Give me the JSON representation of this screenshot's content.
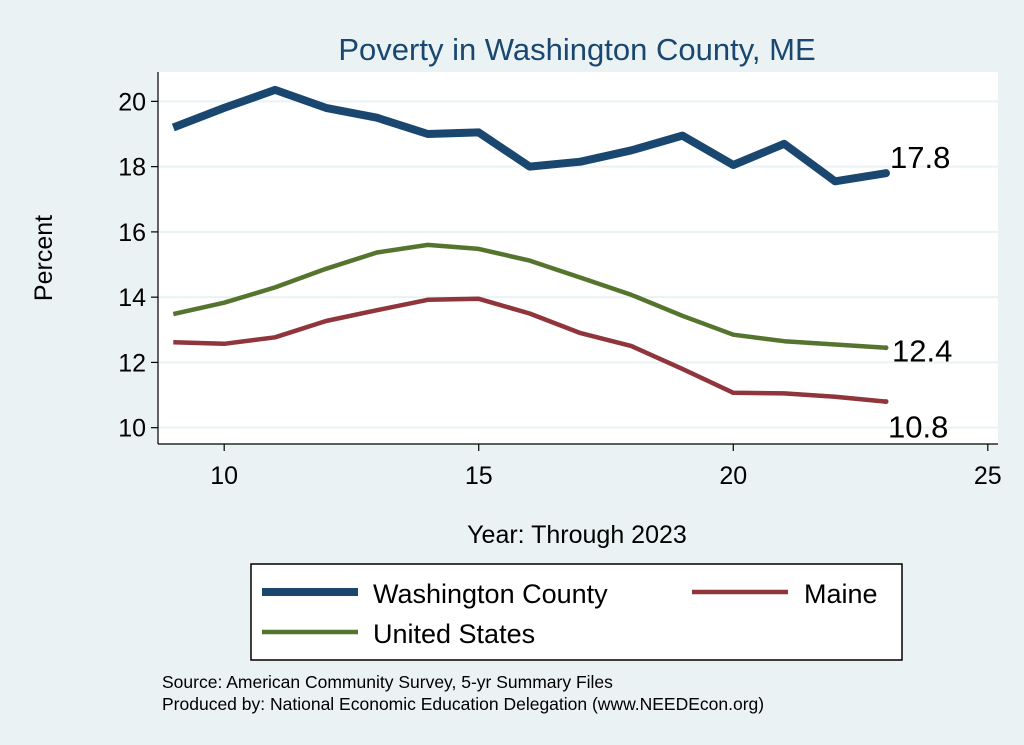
{
  "chart_data": {
    "type": "line",
    "title": "Poverty in Washington County, ME",
    "xlabel": "Year: Through 2023",
    "ylabel": "Percent",
    "xlim": [
      8.7,
      25.2
    ],
    "ylim": [
      9.5,
      20.9
    ],
    "xticks": [
      10,
      15,
      20,
      25
    ],
    "yticks": [
      10,
      12,
      14,
      16,
      18,
      20
    ],
    "grid": true,
    "x": [
      9,
      10,
      11,
      12,
      13,
      14,
      15,
      16,
      17,
      18,
      19,
      20,
      21,
      22,
      23
    ],
    "series": [
      {
        "name": "Washington County",
        "color": "#1a476f",
        "line_width": 8,
        "values": [
          19.2,
          19.8,
          20.35,
          19.8,
          19.5,
          19.0,
          19.05,
          18.0,
          18.15,
          18.5,
          18.95,
          18.05,
          18.7,
          17.55,
          17.8
        ],
        "end_label": "17.8"
      },
      {
        "name": "Maine",
        "color": "#90353b",
        "line_width": 4.5,
        "values": [
          12.62,
          12.57,
          12.77,
          13.27,
          13.6,
          13.92,
          13.95,
          13.5,
          12.9,
          12.5,
          11.8,
          11.07,
          11.05,
          10.95,
          10.8
        ],
        "end_label": "10.8"
      },
      {
        "name": "United States",
        "color": "#55752f",
        "line_width": 4.5,
        "values": [
          13.48,
          13.83,
          14.3,
          14.87,
          15.37,
          15.6,
          15.48,
          15.12,
          14.6,
          14.07,
          13.43,
          12.85,
          12.65,
          12.55,
          12.45
        ],
        "end_label": "12.4"
      }
    ],
    "legend": {
      "position": "bottom",
      "entries": [
        "Washington County",
        "Maine",
        "United States"
      ]
    },
    "notes": [
      "Source: American Community Survey, 5-yr Summary Files",
      "Produced by: National Economic Education Delegation (www.NEEDEcon.org)"
    ],
    "colors": {
      "background": "#eaf2f3",
      "plot_background": "#ffffff",
      "grid": "#eaf2f3",
      "title": "#1a476f"
    }
  }
}
